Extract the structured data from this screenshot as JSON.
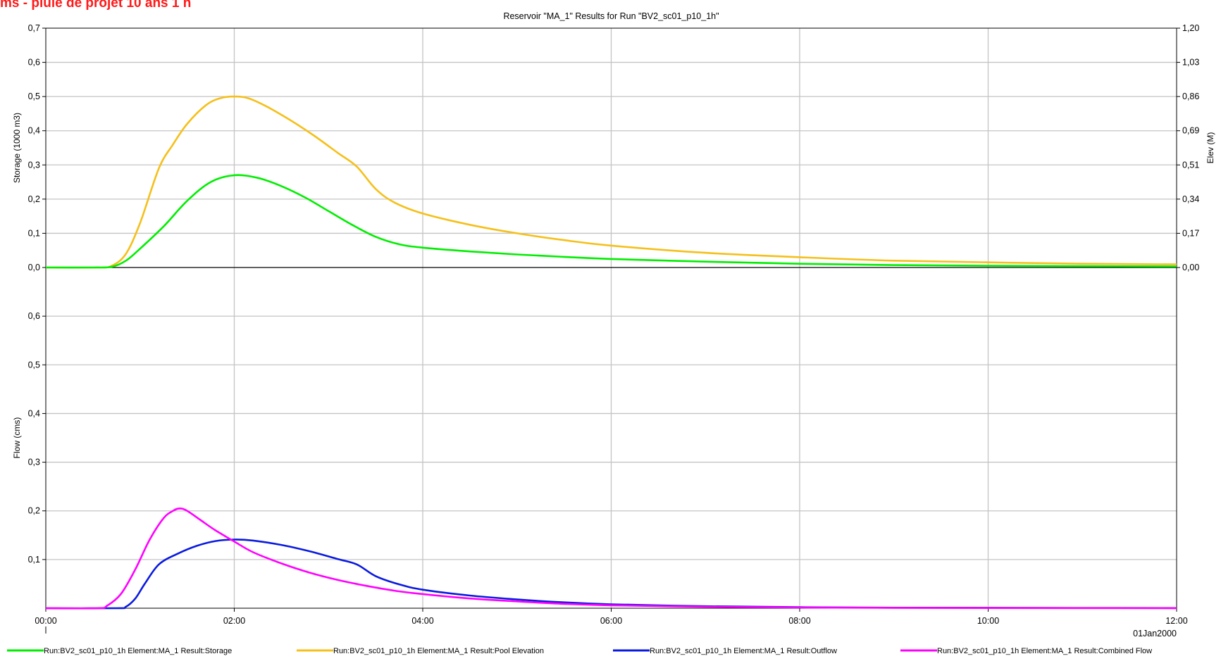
{
  "banner": "ms - pluie de projet 10 ans 1 h",
  "chart_data": [
    {
      "panel": "top",
      "type": "line",
      "title": "Reservoir \"MA_1\" Results for Run \"BV2_sc01_p10_1h\"",
      "xlabel": "",
      "ylabel": "Storage (1000 m3)",
      "ylabel_right": "Elev (M)",
      "xlim": [
        0,
        12
      ],
      "ylim": [
        0,
        0.7
      ],
      "ylim_right": [
        0,
        1.2
      ],
      "yticks": [
        "0,0",
        "0,1",
        "0,2",
        "0,3",
        "0,4",
        "0,5",
        "0,6",
        "0,7"
      ],
      "yticks_right": [
        "0,00",
        "0,17",
        "0,34",
        "0,51",
        "0,69",
        "0,86",
        "1,03",
        "1,20"
      ],
      "grid": true,
      "series": [
        {
          "name": "Run:BV2_sc01_p10_1h Element:MA_1 Result:Storage",
          "color": "#00ee00",
          "axis": "left",
          "x": [
            0,
            0.5,
            0.7,
            0.85,
            1.0,
            1.25,
            1.5,
            1.75,
            2.0,
            2.25,
            2.5,
            2.75,
            3.0,
            3.25,
            3.5,
            3.75,
            4.0,
            4.5,
            5.0,
            5.5,
            6.0,
            7.0,
            8.0,
            9.0,
            10.0,
            11.0,
            12.0
          ],
          "y": [
            0,
            0,
            0.002,
            0.02,
            0.055,
            0.12,
            0.195,
            0.25,
            0.27,
            0.262,
            0.238,
            0.205,
            0.165,
            0.125,
            0.09,
            0.068,
            0.058,
            0.047,
            0.038,
            0.031,
            0.025,
            0.017,
            0.011,
            0.007,
            0.005,
            0.004,
            0.003
          ]
        },
        {
          "name": "Run:BV2_sc01_p10_1h Element:MA_1 Result:Pool Elevation",
          "color": "#f5c01a",
          "axis": "left",
          "x": [
            0,
            0.55,
            0.7,
            0.85,
            1.0,
            1.2,
            1.35,
            1.5,
            1.7,
            1.85,
            2.0,
            2.15,
            2.35,
            2.6,
            2.85,
            3.1,
            3.3,
            3.5,
            3.7,
            4.0,
            4.5,
            5.0,
            5.5,
            6.0,
            7.0,
            8.0,
            9.0,
            10.0,
            11.0,
            12.0
          ],
          "y": [
            0,
            0,
            0.005,
            0.04,
            0.13,
            0.29,
            0.36,
            0.42,
            0.475,
            0.495,
            0.5,
            0.495,
            0.47,
            0.43,
            0.385,
            0.335,
            0.295,
            0.23,
            0.19,
            0.158,
            0.125,
            0.1,
            0.08,
            0.064,
            0.043,
            0.03,
            0.02,
            0.015,
            0.011,
            0.009
          ]
        }
      ]
    },
    {
      "panel": "bottom",
      "type": "line",
      "title": "",
      "xlabel": "",
      "ylabel": "Flow (cms)",
      "xlim": [
        0,
        12
      ],
      "ylim": [
        0,
        0.7
      ],
      "yticks": [
        "0,1",
        "0,2",
        "0,3",
        "0,4",
        "0,5",
        "0,6"
      ],
      "xticks": [
        "00:00",
        "02:00",
        "04:00",
        "06:00",
        "08:00",
        "10:00",
        "12:00"
      ],
      "xdate": "01Jan2000",
      "grid": true,
      "series": [
        {
          "name": "Run:BV2_sc01_p10_1h Element:MA_1 Result:Outflow",
          "color": "#0a1adf",
          "x": [
            0,
            0.75,
            0.85,
            0.95,
            1.05,
            1.2,
            1.4,
            1.6,
            1.8,
            2.0,
            2.2,
            2.5,
            2.8,
            3.1,
            3.3,
            3.5,
            3.75,
            4.0,
            4.5,
            5.0,
            5.5,
            6.0,
            7.0,
            8.0,
            9.0,
            10.0,
            11.0,
            12.0
          ],
          "y": [
            0,
            0,
            0.003,
            0.02,
            0.05,
            0.09,
            0.112,
            0.128,
            0.138,
            0.141,
            0.139,
            0.13,
            0.117,
            0.101,
            0.09,
            0.066,
            0.049,
            0.038,
            0.026,
            0.018,
            0.012,
            0.008,
            0.004,
            0.002,
            0.001,
            0.0008,
            0.0005,
            0.0003
          ]
        },
        {
          "name": "Run:BV2_sc01_p10_1h Element:MA_1 Result:Combined Flow",
          "color": "#ff00ff",
          "x": [
            0,
            0.55,
            0.65,
            0.8,
            0.95,
            1.1,
            1.25,
            1.35,
            1.42,
            1.5,
            1.65,
            1.8,
            2.0,
            2.2,
            2.5,
            2.8,
            3.1,
            3.4,
            3.7,
            4.0,
            4.5,
            5.0,
            5.5,
            6.0,
            7.0,
            8.0,
            9.0,
            10.0,
            11.0,
            12.0
          ],
          "y": [
            0,
            0,
            0.005,
            0.03,
            0.08,
            0.14,
            0.185,
            0.2,
            0.205,
            0.2,
            0.18,
            0.16,
            0.137,
            0.115,
            0.092,
            0.073,
            0.058,
            0.046,
            0.036,
            0.029,
            0.02,
            0.014,
            0.009,
            0.006,
            0.003,
            0.0015,
            0.0008,
            0.0005,
            0.0003,
            0.0002
          ]
        }
      ]
    }
  ]
}
